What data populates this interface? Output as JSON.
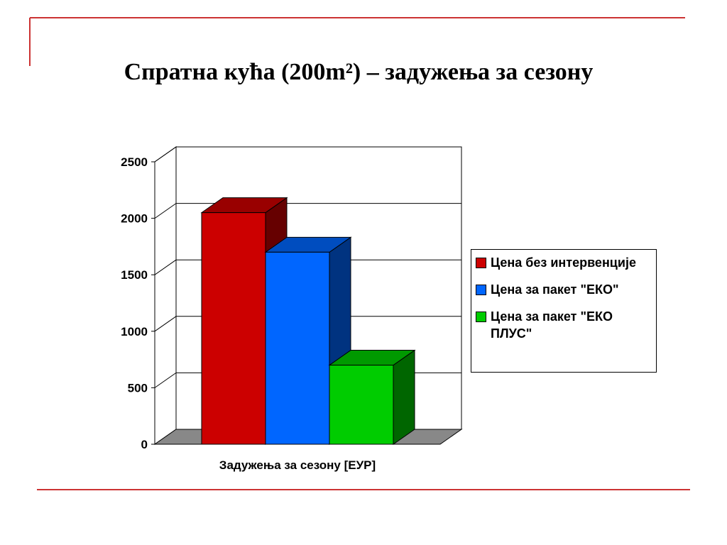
{
  "chart_data": {
    "type": "bar3d",
    "title": "Спратна кућа (200m²) – задужења за сезону",
    "categories": [
      "Задужења за сезону [ЕУР]"
    ],
    "series": [
      {
        "name": "Цена без интервенције",
        "color": "#cc0000",
        "values": [
          2050
        ]
      },
      {
        "name": "Цена за пакет \"ЕКО\"",
        "color": "#0066ff",
        "values": [
          1700
        ]
      },
      {
        "name": "Цена за пакет \"ЕКО ПЛУС\"",
        "color": "#00cc00",
        "values": [
          700
        ]
      }
    ],
    "ylim": [
      0,
      2500
    ],
    "yticks": [
      0,
      500,
      1000,
      1500,
      2000,
      2500
    ],
    "grid": true,
    "legend": "right"
  }
}
